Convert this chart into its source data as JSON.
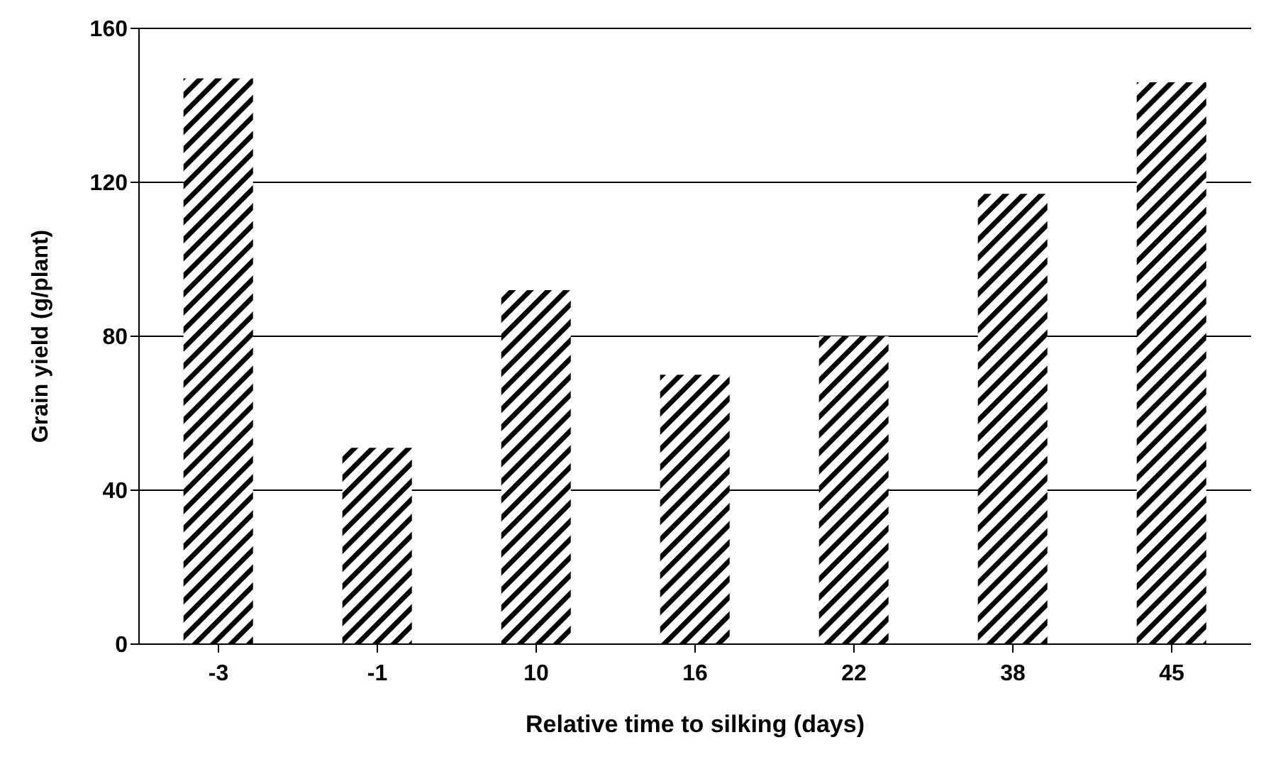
{
  "chart_data": {
    "type": "bar",
    "xlabel": "Relative time to silking (days)",
    "ylabel": "Grain yield (g/plant)",
    "categories": [
      "-3",
      "-1",
      "10",
      "16",
      "22",
      "38",
      "45"
    ],
    "values": [
      147,
      51,
      92,
      70,
      80,
      117,
      146
    ],
    "color": "#000000",
    "ylim": [
      0,
      160
    ],
    "yticks": [
      0,
      40,
      80,
      120,
      160
    ],
    "grid": "y"
  }
}
